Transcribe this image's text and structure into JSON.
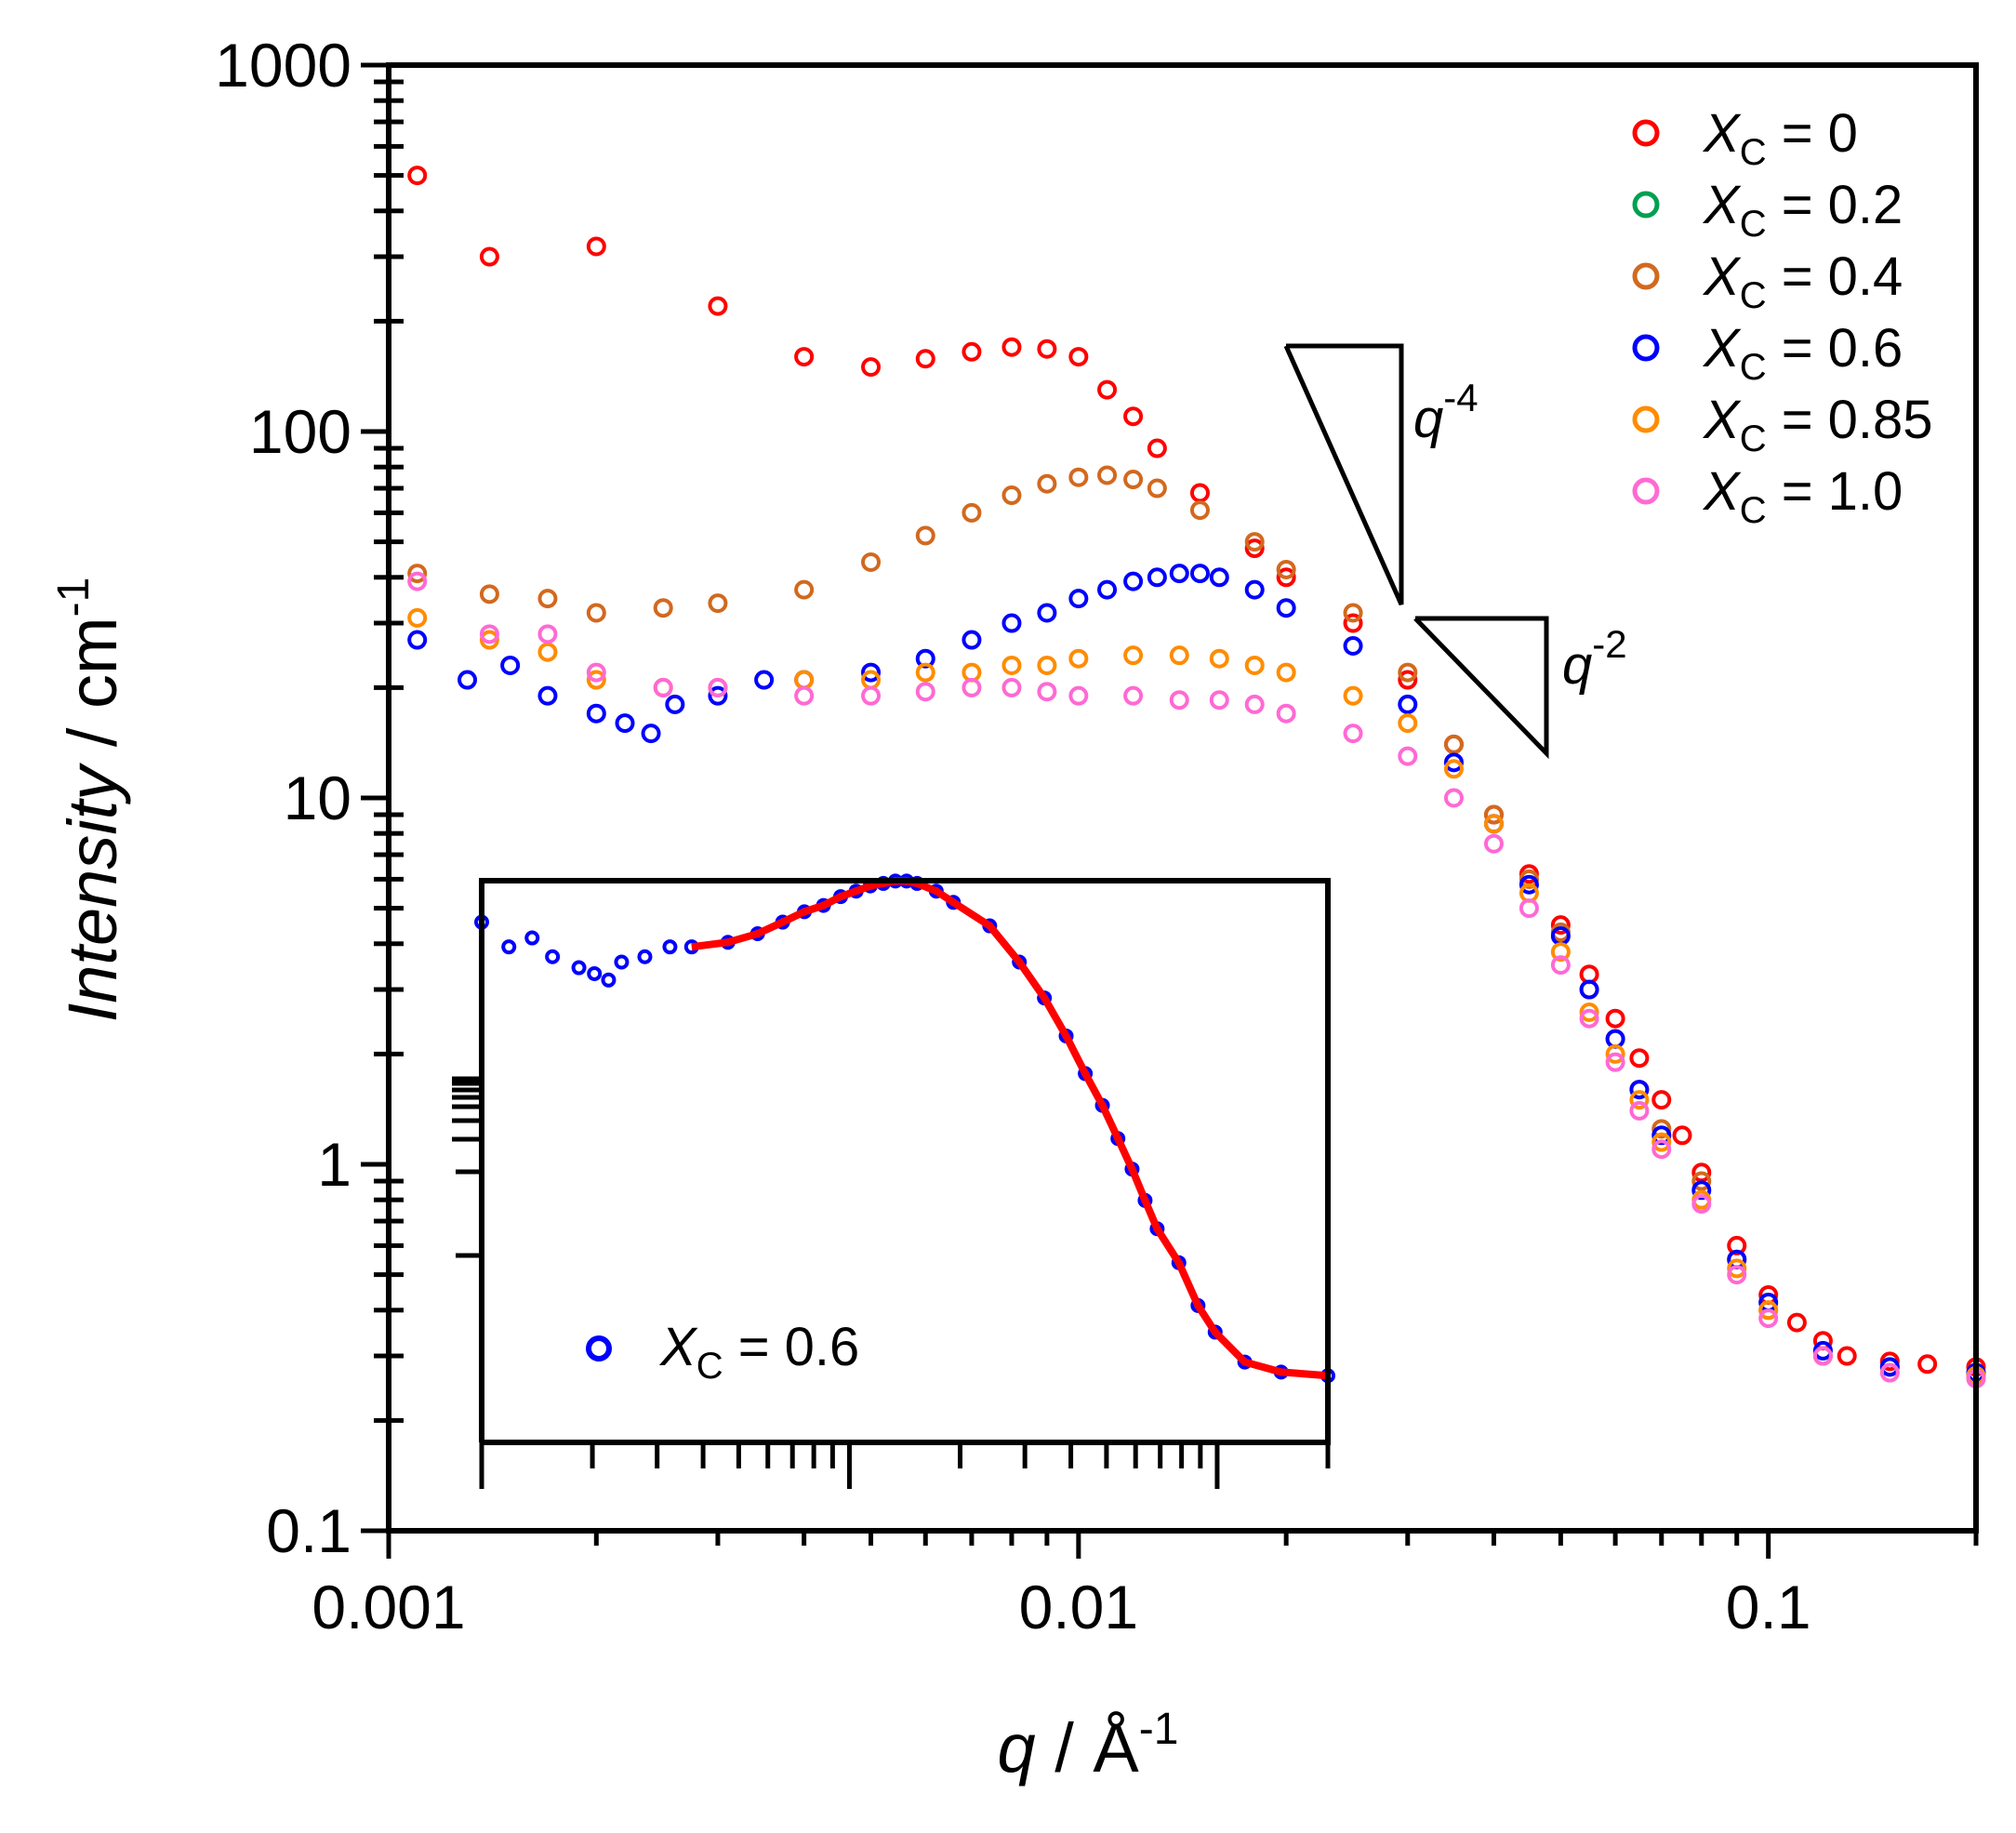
{
  "chart_data": [
    {
      "type": "scatter",
      "xscale": "log",
      "yscale": "log",
      "xlabel": "q / Å",
      "xlabel_sup": "-1",
      "ylabel": "Intensity / cm",
      "ylabel_sup": "-1",
      "xlim": [
        0.001,
        0.2
      ],
      "ylim": [
        0.1,
        1000
      ],
      "x_ticks": [
        {
          "value": 0.001,
          "label": "0.001"
        },
        {
          "value": 0.01,
          "label": "0.01"
        },
        {
          "value": 0.1,
          "label": "0.1"
        }
      ],
      "y_ticks": [
        {
          "value": 0.1,
          "label": "0.1"
        },
        {
          "value": 1,
          "label": "1"
        },
        {
          "value": 10,
          "label": "10"
        },
        {
          "value": 100,
          "label": "100"
        },
        {
          "value": 1000,
          "label": "1000"
        }
      ],
      "legend_position": "top-right",
      "legend_prefix": "X",
      "legend_sub": "C",
      "series": [
        {
          "name": "= 0",
          "color": "#ff0000",
          "points": [
            [
              0.0011,
              500
            ],
            [
              0.0014,
              300
            ],
            [
              0.002,
              320
            ],
            [
              0.003,
              220
            ],
            [
              0.004,
              160
            ],
            [
              0.005,
              150
            ],
            [
              0.006,
              158
            ],
            [
              0.007,
              165
            ],
            [
              0.008,
              170
            ],
            [
              0.009,
              168
            ],
            [
              0.01,
              160
            ],
            [
              0.011,
              130
            ],
            [
              0.012,
              110
            ],
            [
              0.013,
              90
            ],
            [
              0.015,
              68
            ],
            [
              0.018,
              48
            ],
            [
              0.02,
              40
            ],
            [
              0.025,
              30
            ],
            [
              0.03,
              21
            ],
            [
              0.035,
              14
            ],
            [
              0.04,
              9
            ],
            [
              0.045,
              6.2
            ],
            [
              0.05,
              4.5
            ],
            [
              0.055,
              3.3
            ],
            [
              0.06,
              2.5
            ],
            [
              0.065,
              1.95
            ],
            [
              0.07,
              1.5
            ],
            [
              0.075,
              1.2
            ],
            [
              0.08,
              0.95
            ],
            [
              0.09,
              0.6
            ],
            [
              0.1,
              0.44
            ],
            [
              0.11,
              0.37
            ],
            [
              0.12,
              0.33
            ],
            [
              0.13,
              0.3
            ],
            [
              0.15,
              0.29
            ],
            [
              0.17,
              0.285
            ],
            [
              0.2,
              0.28
            ]
          ]
        },
        {
          "name": "= 0.2",
          "color": "#00a050",
          "points": []
        },
        {
          "name": "= 0.4",
          "color": "#d2691e",
          "points": [
            [
              0.0011,
              41
            ],
            [
              0.0014,
              36
            ],
            [
              0.0017,
              35
            ],
            [
              0.002,
              32
            ],
            [
              0.0025,
              33
            ],
            [
              0.003,
              34
            ],
            [
              0.004,
              37
            ],
            [
              0.005,
              44
            ],
            [
              0.006,
              52
            ],
            [
              0.007,
              60
            ],
            [
              0.008,
              67
            ],
            [
              0.009,
              72
            ],
            [
              0.01,
              75
            ],
            [
              0.011,
              76
            ],
            [
              0.012,
              74
            ],
            [
              0.013,
              70
            ],
            [
              0.015,
              61
            ],
            [
              0.018,
              50
            ],
            [
              0.02,
              42
            ],
            [
              0.025,
              32
            ],
            [
              0.03,
              22
            ],
            [
              0.035,
              14
            ],
            [
              0.04,
              9
            ],
            [
              0.045,
              6
            ],
            [
              0.05,
              4.3
            ],
            [
              0.055,
              3
            ],
            [
              0.06,
              2.2
            ],
            [
              0.065,
              1.6
            ],
            [
              0.07,
              1.25
            ],
            [
              0.08,
              0.9
            ],
            [
              0.09,
              0.55
            ],
            [
              0.1,
              0.4
            ],
            [
              0.12,
              0.3
            ],
            [
              0.15,
              0.28
            ],
            [
              0.2,
              0.27
            ]
          ]
        },
        {
          "name": "= 0.6",
          "color": "#0000ff",
          "points": [
            [
              0.0011,
              27
            ],
            [
              0.0013,
              21
            ],
            [
              0.0015,
              23
            ],
            [
              0.0017,
              19
            ],
            [
              0.002,
              17
            ],
            [
              0.0022,
              16
            ],
            [
              0.0024,
              15
            ],
            [
              0.0026,
              18
            ],
            [
              0.003,
              19
            ],
            [
              0.0035,
              21
            ],
            [
              0.004,
              21
            ],
            [
              0.005,
              22
            ],
            [
              0.006,
              24
            ],
            [
              0.007,
              27
            ],
            [
              0.008,
              30
            ],
            [
              0.009,
              32
            ],
            [
              0.01,
              35
            ],
            [
              0.011,
              37
            ],
            [
              0.012,
              39
            ],
            [
              0.013,
              40
            ],
            [
              0.014,
              41
            ],
            [
              0.015,
              41
            ],
            [
              0.016,
              40
            ],
            [
              0.018,
              37
            ],
            [
              0.02,
              33
            ],
            [
              0.025,
              26
            ],
            [
              0.03,
              18
            ],
            [
              0.035,
              12.5
            ],
            [
              0.04,
              8.5
            ],
            [
              0.045,
              5.8
            ],
            [
              0.05,
              4.2
            ],
            [
              0.055,
              3
            ],
            [
              0.06,
              2.2
            ],
            [
              0.065,
              1.6
            ],
            [
              0.07,
              1.2
            ],
            [
              0.08,
              0.85
            ],
            [
              0.09,
              0.55
            ],
            [
              0.1,
              0.42
            ],
            [
              0.12,
              0.31
            ],
            [
              0.15,
              0.28
            ],
            [
              0.2,
              0.27
            ]
          ]
        },
        {
          "name": "= 0.85",
          "color": "#ff8c00",
          "points": [
            [
              0.0011,
              31
            ],
            [
              0.0014,
              27
            ],
            [
              0.0017,
              25
            ],
            [
              0.002,
              21
            ],
            [
              0.0025,
              20
            ],
            [
              0.003,
              20
            ],
            [
              0.004,
              21
            ],
            [
              0.005,
              21
            ],
            [
              0.006,
              22
            ],
            [
              0.007,
              22
            ],
            [
              0.008,
              23
            ],
            [
              0.009,
              23
            ],
            [
              0.01,
              24
            ],
            [
              0.012,
              24.5
            ],
            [
              0.014,
              24.5
            ],
            [
              0.016,
              24
            ],
            [
              0.018,
              23
            ],
            [
              0.02,
              22
            ],
            [
              0.025,
              19
            ],
            [
              0.03,
              16
            ],
            [
              0.035,
              12
            ],
            [
              0.04,
              8.5
            ],
            [
              0.045,
              5.5
            ],
            [
              0.05,
              3.8
            ],
            [
              0.055,
              2.6
            ],
            [
              0.06,
              2
            ],
            [
              0.065,
              1.5
            ],
            [
              0.07,
              1.15
            ],
            [
              0.08,
              0.8
            ],
            [
              0.09,
              0.52
            ],
            [
              0.1,
              0.4
            ],
            [
              0.12,
              0.3
            ],
            [
              0.15,
              0.27
            ],
            [
              0.2,
              0.265
            ]
          ]
        },
        {
          "name": "= 1.0",
          "color": "#ff69d4",
          "points": [
            [
              0.0011,
              39
            ],
            [
              0.0014,
              28
            ],
            [
              0.0017,
              28
            ],
            [
              0.002,
              22
            ],
            [
              0.0025,
              20
            ],
            [
              0.003,
              20
            ],
            [
              0.004,
              19
            ],
            [
              0.005,
              19
            ],
            [
              0.006,
              19.5
            ],
            [
              0.007,
              20
            ],
            [
              0.008,
              20
            ],
            [
              0.009,
              19.5
            ],
            [
              0.01,
              19
            ],
            [
              0.012,
              19
            ],
            [
              0.014,
              18.5
            ],
            [
              0.016,
              18.5
            ],
            [
              0.018,
              18
            ],
            [
              0.02,
              17
            ],
            [
              0.025,
              15
            ],
            [
              0.03,
              13
            ],
            [
              0.035,
              10
            ],
            [
              0.04,
              7.5
            ],
            [
              0.045,
              5
            ],
            [
              0.05,
              3.5
            ],
            [
              0.055,
              2.5
            ],
            [
              0.06,
              1.9
            ],
            [
              0.065,
              1.4
            ],
            [
              0.07,
              1.1
            ],
            [
              0.08,
              0.78
            ],
            [
              0.09,
              0.5
            ],
            [
              0.1,
              0.38
            ],
            [
              0.12,
              0.3
            ],
            [
              0.15,
              0.27
            ],
            [
              0.2,
              0.26
            ]
          ]
        }
      ],
      "slope_annotations": [
        {
          "base": "q",
          "exponent": "-4"
        },
        {
          "base": "q",
          "exponent": "-2"
        }
      ]
    },
    {
      "type": "scatter",
      "inset": true,
      "xscale": "log",
      "yscale": "log",
      "legend_prefix": "X",
      "legend_sub": "C",
      "legend_text": "= 0.6",
      "legend_color": "#0000ff",
      "fit_color": "#ff0000",
      "data_color": "#0000ff"
    }
  ]
}
